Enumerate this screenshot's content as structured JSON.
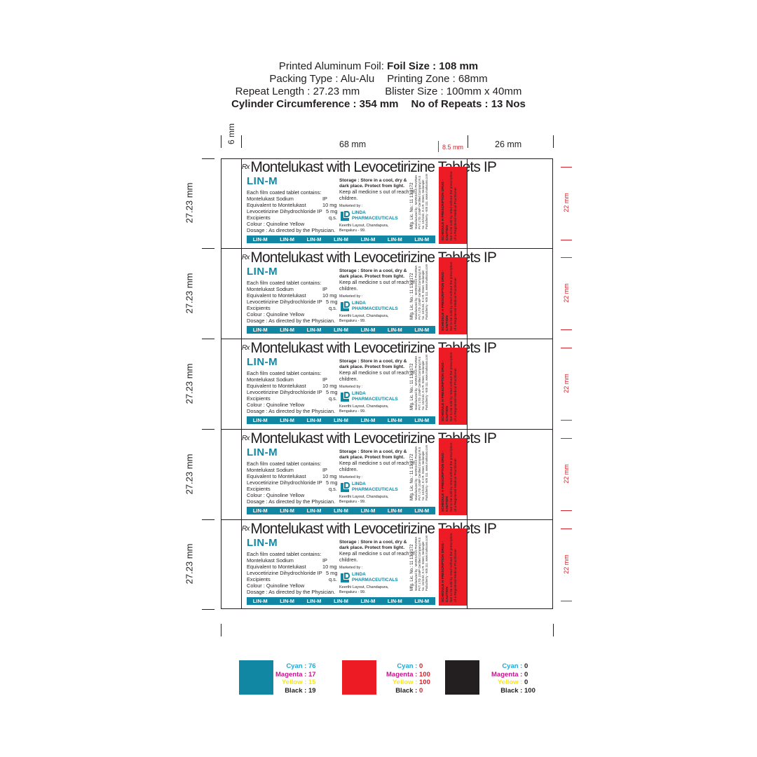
{
  "header": {
    "line1_prefix": "Printed Aluminum Foil: ",
    "line1_bold": "Foil Size : 108 mm",
    "line2_a": "Packing Type : Alu-Alu",
    "line2_b": "Printing Zone : 68mm",
    "line3_a": "Repeat Length : 27.23 mm",
    "line3_b": "Blister Size : 100mm x 40mm",
    "line4_a": "Cylinder Circumference : 354 mm",
    "line4_b": "No of Repeats : 13 Nos"
  },
  "dimensions": {
    "left_margin": "6 mm",
    "print_zone": "68 mm",
    "gap": "8.5 mm",
    "right_zone": "26 mm",
    "repeat": "27.23 mm",
    "red_zone": "22 mm"
  },
  "strip": {
    "rx": "Rx",
    "title": "Montelukast with Levocetirizine Tablets IP",
    "brand": "LIN-M",
    "composition_head": "Each film coated tablet contains:",
    "rows": [
      {
        "label": "Montelukast Sodium",
        "unit": "IP",
        "qty": ""
      },
      {
        "label": "Equivalent to Montelukast",
        "unit": "",
        "qty": "10 mg"
      },
      {
        "label": "Levocetirizine Dihydrochloride  IP",
        "unit": "",
        "qty": "5 mg"
      },
      {
        "label": "Excipients",
        "unit": "",
        "qty": "q.s."
      },
      {
        "label": "Colour : Quinoline Yellow",
        "unit": "",
        "qty": ""
      },
      {
        "label": "Dosage : As directed by the Physician.",
        "unit": "",
        "qty": ""
      }
    ],
    "storage": "Storage : Store in a cool, dry & dark place. Protect from light.",
    "keep": "Keep all medicine s out of reach of children.",
    "marketed_by": "Marketed by :",
    "company_line1": "LINDA",
    "company_line2": "PHARMACEUTICALS",
    "address1": "Keerthi Layout, Chandapura,",
    "address2": "Bengaluru - 99.",
    "mfg_lic": "Mfg. Lic. No.: 11 13 3172",
    "manufacturer": "Manufactured by : MARKSANS PHARMA PVT. LTD. (GMP Certified Company) R.S No. 10/1154, K.V.R. Street, Sedarapet Puducherry - 605 111. www.marksans.com",
    "band": [
      "LIN-M",
      "LIN-M",
      "LIN-M",
      "LIN-M",
      "LIN-M",
      "LIN-M",
      "LIN-M"
    ],
    "caution_title": "SCHEDULE H PRESCRIPTION DRUG - CAUTION",
    "caution_text": "Not to be sold by retail without the prescription of a Registered Medical Practitioner"
  },
  "colors": {
    "teal": "#1187a4",
    "red": "#ed1c24",
    "black": "#231f20"
  },
  "swatches": [
    {
      "color": "#1187a4",
      "cyan_label": "Cyan",
      "cyan": "76",
      "magenta_label": "Magenta",
      "magenta": "17",
      "yellow_label": "Yellow",
      "yellow": "15",
      "black_label": "Black",
      "black": "19"
    },
    {
      "color": "#ed1c24",
      "cyan_label": "Cyan",
      "cyan": "0",
      "magenta_label": "Magenta",
      "magenta": "100",
      "yellow_label": "Yellow",
      "yellow": "100",
      "black_label": "Black",
      "black": "0"
    },
    {
      "color": "#231f20",
      "cyan_label": "Cyan",
      "cyan": "0",
      "magenta_label": "Magenta",
      "magenta": "0",
      "yellow_label": "Yellow",
      "yellow": "0",
      "black_label": "Black",
      "black": "100"
    }
  ]
}
